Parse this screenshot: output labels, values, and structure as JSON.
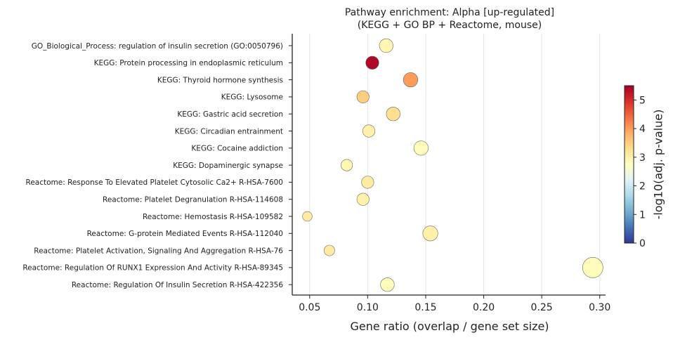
{
  "chart_data": {
    "type": "scatter",
    "title_line1": "Pathway enrichment: Alpha  [up-regulated]",
    "title_line2": "(KEGG + GO BP + Reactome, mouse)",
    "xlabel": "Gene ratio (overlap / gene set size)",
    "xlim": [
      0.035,
      0.305
    ],
    "xticks": [
      0.05,
      0.1,
      0.15,
      0.2,
      0.25,
      0.3
    ],
    "xtick_labels": [
      "0.05",
      "0.10",
      "0.15",
      "0.20",
      "0.25",
      "0.30"
    ],
    "grid": "vertical",
    "colorbar": {
      "label": "-log10(adj. p-value)",
      "range": [
        0,
        5.5
      ],
      "ticks": [
        0,
        1,
        2,
        3,
        4,
        5
      ],
      "tick_labels": [
        "0",
        "1",
        "2",
        "3",
        "4",
        "5"
      ],
      "colormap": "RdYlBu_r",
      "placement": "right"
    },
    "points": [
      {
        "term": "GO_Biological_Process: regulation of insulin secretion (GO:0050796)",
        "x": 0.116,
        "neglog10p": 2.9,
        "size": 10
      },
      {
        "term": "KEGG: Protein processing in endoplasmic reticulum",
        "x": 0.104,
        "neglog10p": 5.4,
        "size": 9
      },
      {
        "term": "KEGG: Thyroid hormone synthesis",
        "x": 0.137,
        "neglog10p": 4.0,
        "size": 11
      },
      {
        "term": "KEGG: Lysosome",
        "x": 0.096,
        "neglog10p": 3.5,
        "size": 8
      },
      {
        "term": "KEGG: Gastric acid secretion",
        "x": 0.122,
        "neglog10p": 3.3,
        "size": 10
      },
      {
        "term": "KEGG: Circadian entrainment",
        "x": 0.101,
        "neglog10p": 3.0,
        "size": 8
      },
      {
        "term": "KEGG: Cocaine addiction",
        "x": 0.146,
        "neglog10p": 2.8,
        "size": 11
      },
      {
        "term": "KEGG: Dopaminergic synapse",
        "x": 0.082,
        "neglog10p": 2.9,
        "size": 7
      },
      {
        "term": "Reactome: Response To Elevated Platelet Cytosolic Ca2+ R-HSA-7600",
        "x": 0.1,
        "neglog10p": 3.1,
        "size": 8
      },
      {
        "term": "Reactome: Platelet Degranulation R-HSA-114608",
        "x": 0.096,
        "neglog10p": 3.0,
        "size": 8
      },
      {
        "term": "Reactome: Hemostasis R-HSA-109582",
        "x": 0.048,
        "neglog10p": 3.1,
        "size": 5
      },
      {
        "term": "Reactome: G-protein Mediated Events R-HSA-112040",
        "x": 0.154,
        "neglog10p": 3.0,
        "size": 12
      },
      {
        "term": "Reactome: Platelet Activation, Signaling And Aggregation R-HSA-76",
        "x": 0.067,
        "neglog10p": 3.1,
        "size": 6
      },
      {
        "term": "Reactome: Regulation Of RUNX1 Expression And Activity R-HSA-89345",
        "x": 0.294,
        "neglog10p": 2.8,
        "size": 22
      },
      {
        "term": "Reactome: Regulation Of Insulin Secretion R-HSA-422356",
        "x": 0.117,
        "neglog10p": 2.8,
        "size": 10
      }
    ]
  }
}
